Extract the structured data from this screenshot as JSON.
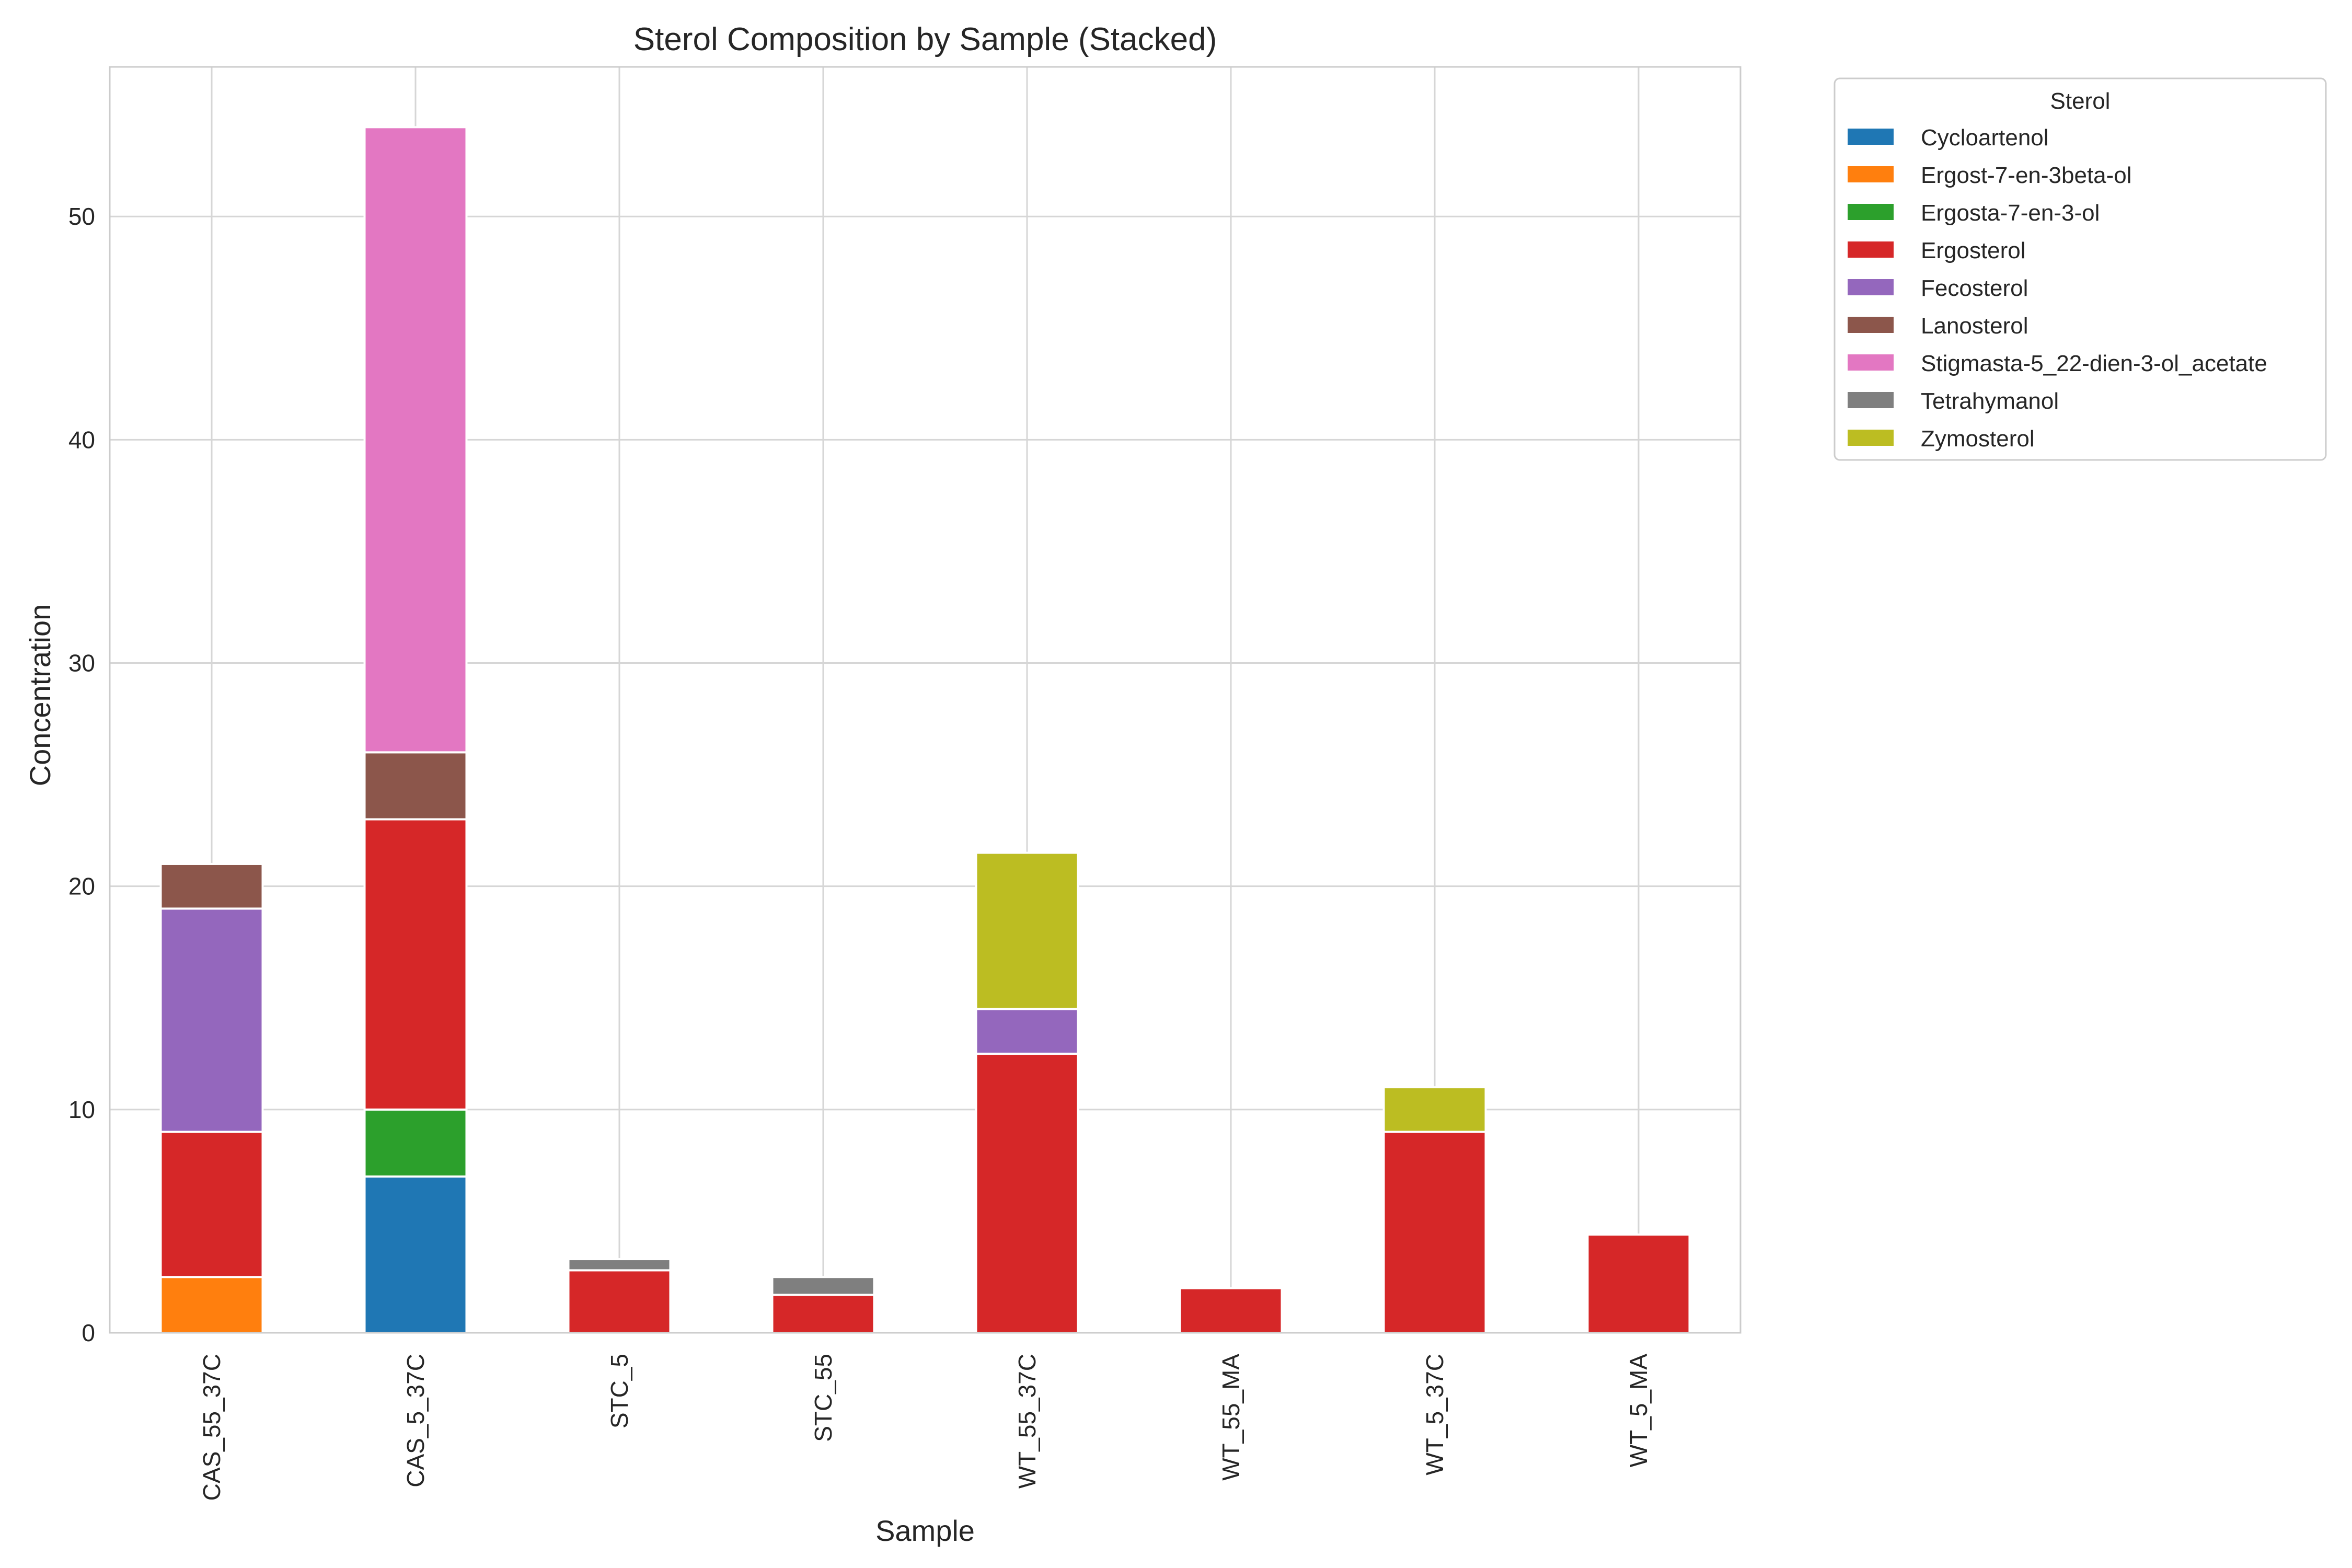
{
  "chart_data": {
    "type": "bar",
    "stacked": true,
    "title": "Sterol Composition by Sample (Stacked)",
    "xlabel": "Sample",
    "ylabel": "Concentration",
    "ylim": [
      0,
      56.7
    ],
    "yticks": [
      0,
      10,
      20,
      30,
      40,
      50
    ],
    "grid": true,
    "legend": {
      "title": "Sterol",
      "placement": "outside-top-right"
    },
    "categories": [
      "CAS_55_37C",
      "CAS_5_37C",
      "STC_5",
      "STC_55",
      "WT_55_37C",
      "WT_55_MA",
      "WT_5_37C",
      "WT_5_MA"
    ],
    "series": [
      {
        "name": "Cycloartenol",
        "color": "#1f77b4",
        "values": [
          0,
          7,
          0,
          0,
          0,
          0,
          0,
          0
        ]
      },
      {
        "name": "Ergost-7-en-3beta-ol",
        "color": "#ff7f0e",
        "values": [
          2.5,
          0,
          0,
          0,
          0,
          0,
          0,
          0
        ]
      },
      {
        "name": "Ergosta-7-en-3-ol",
        "color": "#2ca02c",
        "values": [
          0,
          3,
          0,
          0,
          0,
          0,
          0,
          0
        ]
      },
      {
        "name": "Ergosterol",
        "color": "#d62728",
        "values": [
          6.5,
          13,
          2.8,
          1.7,
          12.5,
          2,
          9,
          4.4
        ]
      },
      {
        "name": "Fecosterol",
        "color": "#9467bd",
        "values": [
          10,
          0,
          0,
          0,
          2,
          0,
          0,
          0
        ]
      },
      {
        "name": "Lanosterol",
        "color": "#8c564b",
        "values": [
          2,
          3,
          0,
          0,
          0,
          0,
          0,
          0
        ]
      },
      {
        "name": "Stigmasta-5_22-dien-3-ol_acetate",
        "color": "#e377c2",
        "values": [
          0,
          28,
          0,
          0,
          0,
          0,
          0,
          0
        ]
      },
      {
        "name": "Tetrahymanol",
        "color": "#7f7f7f",
        "values": [
          0,
          0,
          0.5,
          0.8,
          0,
          0,
          0,
          0
        ]
      },
      {
        "name": "Zymosterol",
        "color": "#bcbd22",
        "values": [
          0,
          0,
          0,
          0,
          7,
          0,
          2,
          0
        ]
      }
    ]
  }
}
